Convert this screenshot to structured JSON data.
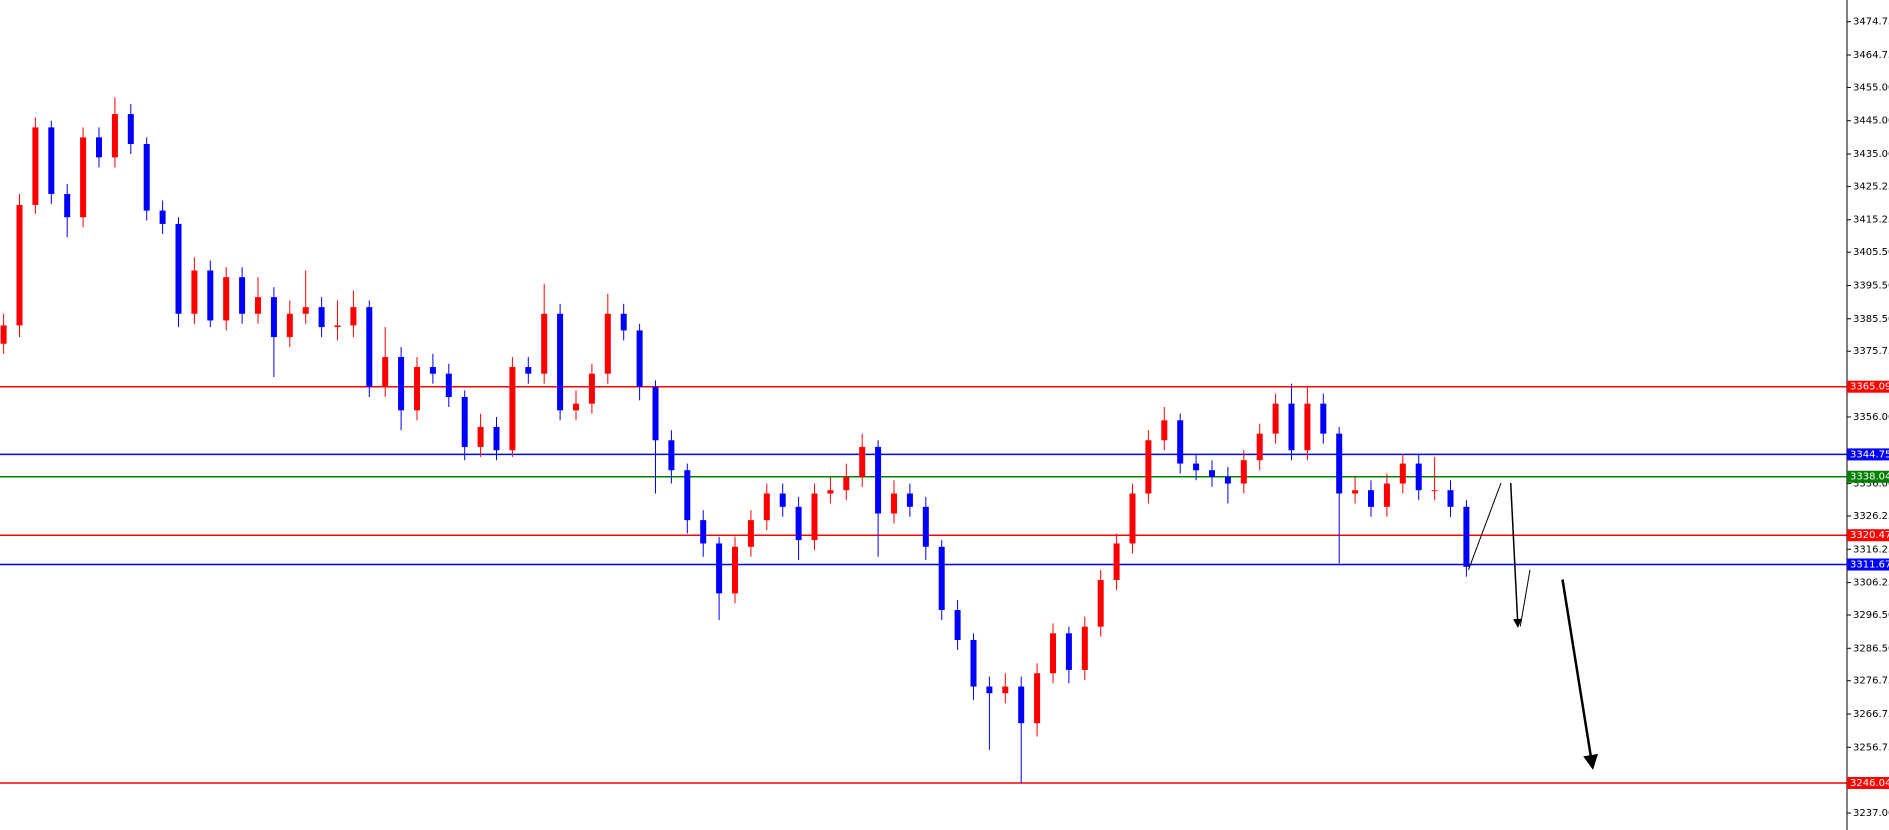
{
  "chart_data": {
    "type": "candlestick",
    "up_color": "#ff0000",
    "down_color": "#0000ff",
    "ylim": [
      3231.91,
      3481.27
    ],
    "yticks": [
      {
        "value": 3474.75,
        "label": "3474.75"
      },
      {
        "value": 3464.75,
        "label": "3464.75"
      },
      {
        "value": 3455.0,
        "label": "3455.00"
      },
      {
        "value": 3445.0,
        "label": "3445.00"
      },
      {
        "value": 3435.0,
        "label": "3435.00"
      },
      {
        "value": 3425.25,
        "label": "3425.25"
      },
      {
        "value": 3415.25,
        "label": "3415.25"
      },
      {
        "value": 3405.5,
        "label": "3405.50"
      },
      {
        "value": 3395.5,
        "label": "3395.50"
      },
      {
        "value": 3385.5,
        "label": "3385.50"
      },
      {
        "value": 3375.75,
        "label": "3375.75"
      },
      {
        "value": 3356.0,
        "label": "3356.00"
      },
      {
        "value": 3336.0,
        "label": "3336.00"
      },
      {
        "value": 3326.25,
        "label": "3326.25"
      },
      {
        "value": 3316.25,
        "label": "3316.25"
      },
      {
        "value": 3306.25,
        "label": "3306.25"
      },
      {
        "value": 3296.5,
        "label": "3296.50"
      },
      {
        "value": 3286.5,
        "label": "3286.50"
      },
      {
        "value": 3276.75,
        "label": "3276.75"
      },
      {
        "value": 3266.75,
        "label": "3266.75"
      },
      {
        "value": 3256.75,
        "label": "3256.75"
      },
      {
        "value": 3237.0,
        "label": "3237.00"
      }
    ],
    "levels": [
      {
        "price": 3365.09,
        "color": "#ff0000"
      },
      {
        "price": 3344.75,
        "color": "#0000ff"
      },
      {
        "price": 3338.04,
        "color": "#008000"
      },
      {
        "price": 3320.47,
        "color": "#ff0000"
      },
      {
        "price": 3311.67,
        "color": "#0000ff"
      },
      {
        "price": 3246.04,
        "color": "#ff0000"
      }
    ],
    "open": [
      3378,
      3383.5,
      3419.7,
      3443,
      3423,
      3416,
      3440,
      3434,
      3447,
      3438,
      3418,
      3414,
      3387,
      3400,
      3385,
      3398,
      3387,
      3392,
      3380,
      3387,
      3389,
      3383,
      3383.5,
      3389,
      3365,
      3374,
      3358,
      3371,
      3369,
      3362,
      3347,
      3353,
      3346,
      3371,
      3369,
      3387,
      3358,
      3360,
      3369,
      3387,
      3382,
      3365,
      3349,
      3340,
      3325,
      3318,
      3303,
      3317,
      3325,
      3333,
      3329,
      3319,
      3333,
      3334,
      3338,
      3347,
      3327,
      3333,
      3329,
      3317,
      3298,
      3289,
      3275,
      3273,
      3275,
      3264,
      3279,
      3291,
      3280,
      3293,
      3307,
      3318,
      3333,
      3349,
      3355,
      3342,
      3340,
      3338,
      3336,
      3343,
      3351,
      3360,
      3346,
      3360,
      3351,
      3333,
      3334,
      3329,
      3336,
      3342,
      3334,
      3334,
      3329
    ],
    "high": [
      3387,
      3423,
      3446,
      3445,
      3426,
      3443,
      3443,
      3452,
      3450,
      3440,
      3421,
      3416,
      3404,
      3403,
      3401,
      3401,
      3398,
      3395,
      3391,
      3400,
      3392,
      3391,
      3394,
      3391,
      3383,
      3377,
      3374,
      3375,
      3372,
      3364,
      3357,
      3356,
      3374,
      3374,
      3396,
      3390,
      3364,
      3372,
      3393,
      3390,
      3384,
      3367,
      3352,
      3342,
      3328,
      3320,
      3320,
      3328,
      3336,
      3336,
      3332,
      3336,
      3338,
      3342,
      3351,
      3349,
      3337,
      3336,
      3332,
      3319,
      3301,
      3291,
      3278,
      3279,
      3278,
      3282,
      3294,
      3293,
      3296,
      3310,
      3321,
      3336,
      3352,
      3359,
      3357,
      3345,
      3343,
      3341,
      3346,
      3354,
      3363,
      3366,
      3365,
      3363,
      3353,
      3338,
      3337,
      3339,
      3345,
      3345,
      3344,
      3337,
      3331
    ],
    "low": [
      3375,
      3380,
      3417,
      3420,
      3410,
      3413,
      3431,
      3431,
      3435,
      3415,
      3411,
      3383,
      3384,
      3383,
      3382,
      3384,
      3384,
      3368,
      3377,
      3384,
      3380,
      3379,
      3380,
      3362,
      3362,
      3352,
      3355,
      3366,
      3359,
      3343,
      3344,
      3343,
      3344,
      3366,
      3366,
      3355,
      3355,
      3357,
      3366,
      3379,
      3361,
      3333,
      3336,
      3321,
      3314,
      3295,
      3300,
      3314,
      3322,
      3326,
      3313,
      3316,
      3330,
      3331,
      3335,
      3314,
      3324,
      3326,
      3313,
      3295,
      3286,
      3271,
      3256,
      3270,
      3246,
      3260,
      3276,
      3276,
      3277,
      3290,
      3304,
      3315,
      3330,
      3346,
      3339,
      3337,
      3335,
      3330,
      3333,
      3340,
      3348,
      3343,
      3343,
      3348,
      3312,
      3330,
      3326,
      3326,
      3333,
      3331,
      3331,
      3326,
      3308
    ],
    "close": [
      3383.5,
      3419.7,
      3443,
      3423,
      3416,
      3440,
      3434,
      3447,
      3438,
      3418,
      3414,
      3387,
      3400,
      3385,
      3398,
      3387,
      3392,
      3380,
      3387,
      3389,
      3383,
      3383.5,
      3389,
      3365,
      3374,
      3358,
      3371,
      3369,
      3362,
      3347,
      3353,
      3346,
      3371,
      3369,
      3387,
      3358,
      3360,
      3369,
      3387,
      3382,
      3365,
      3349,
      3340,
      3325,
      3318,
      3303,
      3317,
      3325,
      3333,
      3329,
      3319,
      3333,
      3334,
      3338,
      3347,
      3327,
      3333,
      3329,
      3317,
      3298,
      3289,
      3275,
      3273,
      3275,
      3264,
      3279,
      3291,
      3280,
      3293,
      3307,
      3318,
      3333,
      3349,
      3355,
      3342,
      3340,
      3338,
      3336,
      3343,
      3351,
      3360,
      3346,
      3360,
      3351,
      3333,
      3334,
      3329,
      3336,
      3342,
      3334,
      3334,
      3329,
      3311
    ]
  }
}
